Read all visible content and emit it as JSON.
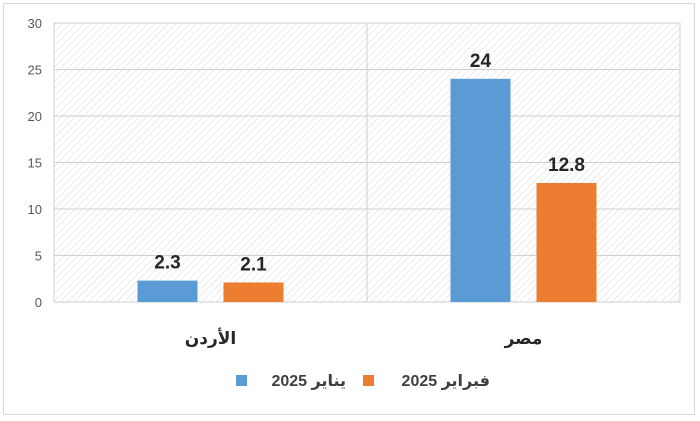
{
  "chart_data": {
    "type": "bar",
    "title": "",
    "xlabel": "",
    "ylabel": "",
    "categories": [
      "الأردن",
      "مصر"
    ],
    "series": [
      {
        "name": "يناير 2025",
        "color": "#5b9bd5",
        "values": [
          2.3,
          24
        ]
      },
      {
        "name": "فبراير 2025",
        "color": "#ed7d31",
        "values": [
          2.1,
          12.8
        ]
      }
    ],
    "data_labels": [
      [
        "2.3",
        "24"
      ],
      [
        "2.1",
        "12.8"
      ]
    ],
    "ylim": [
      0,
      30
    ],
    "yticks": [
      "0",
      "5",
      "10",
      "15",
      "20",
      "25",
      "30"
    ],
    "grid": true,
    "legend_position": "bottom",
    "plot_background": "hatched"
  }
}
